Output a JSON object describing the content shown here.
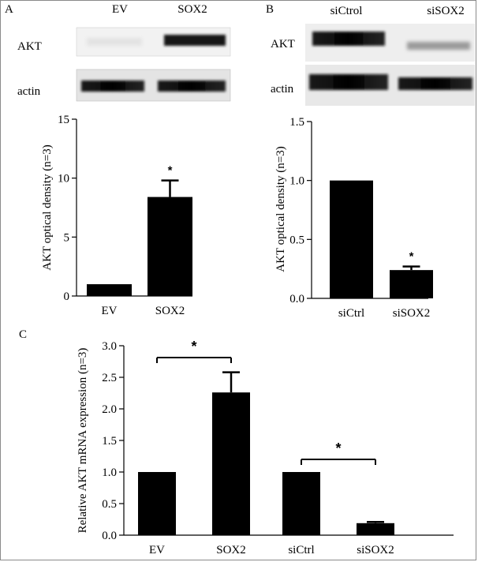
{
  "panels": {
    "A": {
      "letter": "A",
      "blot": {
        "column_labels": [
          "EV",
          "SOX2"
        ],
        "row_labels": [
          "AKT",
          "actin"
        ]
      }
    },
    "B": {
      "letter": "B",
      "blot": {
        "column_labels": [
          "siCtrol",
          "siSOX2"
        ],
        "row_labels": [
          "AKT",
          "actin"
        ]
      }
    },
    "C": {
      "letter": "C"
    }
  },
  "chart_data": [
    {
      "panel": "A",
      "type": "bar",
      "categories": [
        "EV",
        "SOX2"
      ],
      "values": [
        1.0,
        8.4
      ],
      "errors": [
        0,
        1.4
      ],
      "ylabel": "AKT optical density (n=3)",
      "ylim": [
        0,
        15
      ],
      "yticks": [
        0,
        5,
        10,
        15
      ],
      "ytick_labels": [
        "0",
        "5",
        "10",
        "15"
      ],
      "significance": [
        {
          "bar": 1,
          "label": "*"
        }
      ],
      "grid": false
    },
    {
      "panel": "B",
      "type": "bar",
      "categories": [
        "siCtrl",
        "siSOX2"
      ],
      "values": [
        1.0,
        0.24
      ],
      "errors": [
        0,
        0.03
      ],
      "ylabel": "AKT optical density (n=3)",
      "ylim": [
        0,
        1.5
      ],
      "yticks": [
        0,
        0.5,
        1.0,
        1.5
      ],
      "ytick_labels": [
        "0.0",
        "0.5",
        "1.0",
        "1.5"
      ],
      "significance": [
        {
          "bar": 1,
          "label": "*"
        }
      ],
      "grid": false
    },
    {
      "panel": "C",
      "type": "bar",
      "categories": [
        "EV",
        "SOX2",
        "siCtrl",
        "siSOX2"
      ],
      "values": [
        1.0,
        2.26,
        1.0,
        0.19
      ],
      "errors": [
        0,
        0.32,
        0,
        0.02
      ],
      "ylabel": "Relative AKT mRNA expression (n=3)",
      "ylim": [
        0,
        3.0
      ],
      "yticks": [
        0,
        0.5,
        1.0,
        1.5,
        2.0,
        2.5,
        3.0
      ],
      "ytick_labels": [
        "0.0",
        "0.5",
        "1.0",
        "1.5",
        "2.0",
        "2.5",
        "3.0"
      ],
      "significance": [
        {
          "from": 0,
          "to": 1,
          "label": "*"
        },
        {
          "from": 2,
          "to": 3,
          "label": "*"
        }
      ],
      "grid": false
    }
  ]
}
